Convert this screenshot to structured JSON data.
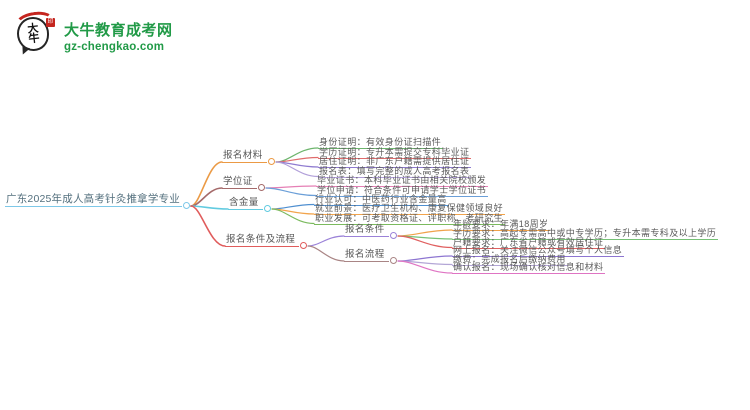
{
  "logo": {
    "title": "大牛教育成考网",
    "subtitle": "gz-chengkao.com",
    "icon_text": "大\n牛",
    "seal_text": "印",
    "brand_color": "#219a47",
    "seal_color": "#c5251f"
  },
  "mindmap": {
    "root_id": "root",
    "nodes": [
      {
        "id": "root",
        "parent": null,
        "label": "广东2025年成人高考针灸推拿学专业",
        "color": "#7ec8e8"
      },
      {
        "id": "m1",
        "parent": "root",
        "label": "报名材料",
        "color": "#eb9a45"
      },
      {
        "id": "m1l1",
        "parent": "m1",
        "label": "身份证明：有效身份证扫描件",
        "color": "#6db56d"
      },
      {
        "id": "m1l2",
        "parent": "m1",
        "label": "学历证明：专升本需提交专科毕业证",
        "color": "#e06c6c"
      },
      {
        "id": "m1l3",
        "parent": "m1",
        "label": "居住证明：非广东户籍需提供居住证",
        "color": "#8f7bd0"
      },
      {
        "id": "m1l4",
        "parent": "m1",
        "label": "报名表：填写完整的成人高考报名表",
        "color": "#b19fd9"
      },
      {
        "id": "m2",
        "parent": "root",
        "label": "学位证",
        "color": "#a56a6a"
      },
      {
        "id": "m2l1",
        "parent": "m2",
        "label": "毕业证书：本科毕业证书由相关院校颁发",
        "color": "#e57fb5"
      },
      {
        "id": "m2l2",
        "parent": "m2",
        "label": "学位申请：符合条件可申请学士学位证书",
        "color": "#6b9fd8"
      },
      {
        "id": "m3",
        "parent": "root",
        "label": "含金量",
        "color": "#62cbe0"
      },
      {
        "id": "m3l1",
        "parent": "m3",
        "label": "行业认可：中医药行业含金量高",
        "color": "#4f8fd0"
      },
      {
        "id": "m3l2",
        "parent": "m3",
        "label": "就业前景：医疗卫生机构、康复保健领域良好",
        "color": "#f2a44c"
      },
      {
        "id": "m3l3",
        "parent": "m3",
        "label": "职业发展：可考取资格证、评职称、考研究生",
        "color": "#7bba5e"
      },
      {
        "id": "m4",
        "parent": "root",
        "label": "报名条件及流程",
        "color": "#e05c5c"
      },
      {
        "id": "m4s1",
        "parent": "m4",
        "label": "报名条件",
        "color": "#9b82d8"
      },
      {
        "id": "m4s1l1",
        "parent": "m4s1",
        "label": "年龄要求：年满18周岁",
        "color": "#f0a24a"
      },
      {
        "id": "m4s1l2",
        "parent": "m4s1",
        "label": "学历要求：高起专需高中或中专学历；专升本需专科及以上学历",
        "color": "#76c176"
      },
      {
        "id": "m4s1l3",
        "parent": "m4s1",
        "label": "户籍要求：广东省户籍或有效居住证",
        "color": "#e06060"
      },
      {
        "id": "m4s2",
        "parent": "m4",
        "label": "报名流程",
        "color": "#a98585"
      },
      {
        "id": "m4s2l1",
        "parent": "m4s2",
        "label": "网上报名：关注微信公众号填写个人信息",
        "color": "#8d75d1"
      },
      {
        "id": "m4s2l2",
        "parent": "m4s2",
        "label": "缴费：完成报名后缴纳费用",
        "color": "#b3a6d6"
      },
      {
        "id": "m4s2l3",
        "parent": "m4s2",
        "label": "确认报名：现场确认核对信息和材料",
        "color": "#df74c3"
      }
    ]
  }
}
